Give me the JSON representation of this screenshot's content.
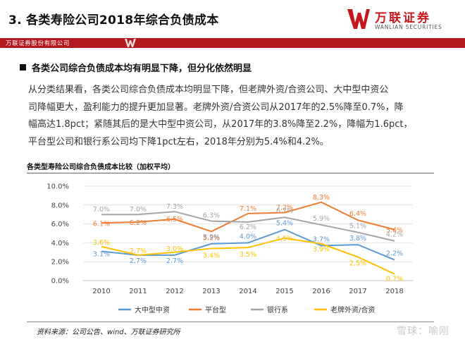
{
  "slide": {
    "title": "3.  各类寿险公司2018年综合负债成本",
    "logo": {
      "cn": "万联证券",
      "en": "WANLIAN SECURITIES",
      "brand_color": "#c8161d"
    },
    "banner": {
      "company": "万联证券股份有限公司",
      "color": "#b3181e"
    },
    "subhead": "各类公司综合负债成本均有明显下降，但分化依然明显",
    "paragraph_lines": [
      "从分类结果看，各类公司综合负债成本均明显下降，但老牌外资/合资公司、大中型中资公",
      "司降幅更大，盈利能力的提升更加显著。老牌外资/合资公司从2017年的2.5%降至0.7%，降",
      "幅高达1.8pct；紧随其后的是大中型中资公司，从2017年的3.8%降至2.2%，降幅为1.6pct，",
      "平台型公司和银行系公司均下降1pct左右，2018年分别为5.4%和4.2%。"
    ],
    "source": "资料来源：公司公告、wind、万联证券研究所",
    "watermark": "雪球：喻刚"
  },
  "chart_data": {
    "type": "line",
    "title": "各类型寿险公司综合负债成本比较（加权平均）",
    "xlabel": "",
    "ylabel": "",
    "categories": [
      "2010",
      "2011",
      "2012",
      "2013",
      "2014",
      "2015",
      "2016",
      "2017",
      "2018"
    ],
    "ylim": [
      0,
      10
    ],
    "yticks": [
      "0.0%",
      "2.0%",
      "4.0%",
      "6.0%",
      "8.0%",
      "10.0%"
    ],
    "grid": "horizontal",
    "legend_position": "bottom",
    "series": [
      {
        "name": "大中型中资",
        "color": "#5b9bd5",
        "values": [
          3.1,
          2.7,
          2.7,
          3.9,
          4.0,
          5.4,
          3.7,
          3.8,
          2.2
        ],
        "labels": [
          "3.1%",
          "2.7%",
          "2.7%",
          "3.9%",
          "4.0%",
          "5.4%",
          "3.7%",
          "3.8%",
          "2.2%"
        ]
      },
      {
        "name": "平台型",
        "color": "#ed7d31",
        "values": [
          6.1,
          6.2,
          6.5,
          5.2,
          7.1,
          7.2,
          8.3,
          6.4,
          5.4
        ],
        "labels": [
          "6.1%",
          "6.2%",
          "6.5%",
          "5.2%",
          "7.1%",
          "7.2%",
          "8.3%",
          "6.4%",
          "5.4%"
        ]
      },
      {
        "name": "银行系",
        "color": "#a5a5a5",
        "values": [
          7.0,
          7.0,
          7.3,
          6.3,
          6.2,
          6.7,
          5.9,
          5.1,
          4.2
        ],
        "labels": [
          "7.0%",
          "7.0%",
          "7.3%",
          "6.3%",
          "6.2%",
          "6.7%",
          "5.9%",
          "5.1%",
          "4.2%"
        ]
      },
      {
        "name": "老牌外资/合资",
        "color": "#ffc000",
        "values": [
          3.6,
          2.7,
          3.0,
          3.4,
          3.5,
          4.5,
          3.9,
          2.5,
          0.7
        ],
        "labels": [
          "3.6%",
          "2.7%",
          "3.0%",
          "3.4%",
          "3.5%",
          "4.5%",
          "3.9%",
          "2.5%",
          "0.7%"
        ]
      }
    ]
  }
}
